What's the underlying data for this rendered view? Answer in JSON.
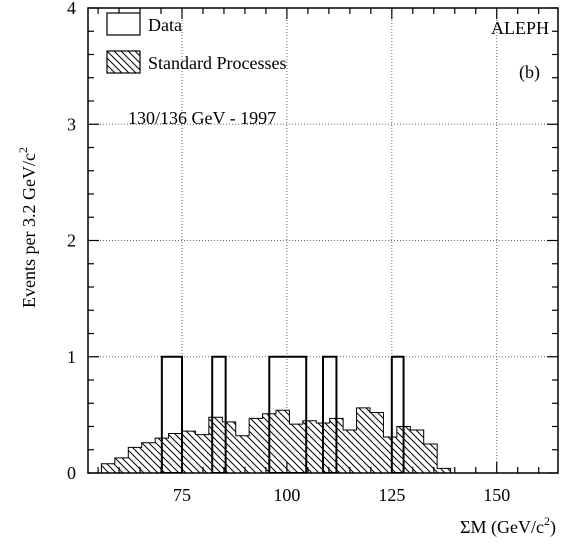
{
  "chart_data": {
    "type": "histogram",
    "experiment_label": "ALEPH",
    "panel_label": "(b)",
    "annotation": "130/136 GeV - 1997",
    "xlabel": "ΣM (GeV/c²)",
    "xlabel_parts": {
      "main": "ΣM (GeV/c",
      "sup": "2",
      "close": ")"
    },
    "ylabel": "Events per 3.2 GeV/c²",
    "ylabel_parts": {
      "main": "Events per 3.2 GeV/c",
      "sup": "2"
    },
    "xlim": [
      52.6,
      164.6
    ],
    "ylim": [
      0,
      4
    ],
    "x_ticks": [
      75,
      100,
      125,
      150
    ],
    "y_ticks": [
      0,
      1,
      2,
      3,
      4
    ],
    "grid": true,
    "legend_position": "top-left",
    "bin_width": 3.2,
    "series": [
      {
        "name": "Data",
        "style": "open",
        "bins": [
          {
            "x0": 70.2,
            "x1": 75.0,
            "y": 1
          },
          {
            "x0": 82.2,
            "x1": 85.4,
            "y": 1
          },
          {
            "x0": 95.8,
            "x1": 104.6,
            "y": 1
          },
          {
            "x0": 108.6,
            "x1": 111.8,
            "y": 1
          },
          {
            "x0": 125.0,
            "x1": 127.8,
            "y": 1
          }
        ]
      },
      {
        "name": "Standard Processes",
        "style": "hatched",
        "bin_start": 55.8,
        "values": [
          0.08,
          0.13,
          0.22,
          0.26,
          0.3,
          0.34,
          0.36,
          0.33,
          0.48,
          0.44,
          0.32,
          0.47,
          0.51,
          0.54,
          0.42,
          0.45,
          0.43,
          0.47,
          0.37,
          0.56,
          0.52,
          0.31,
          0.4,
          0.37,
          0.25,
          0.04,
          0,
          0,
          0,
          0,
          0,
          0,
          0,
          0
        ]
      }
    ]
  }
}
